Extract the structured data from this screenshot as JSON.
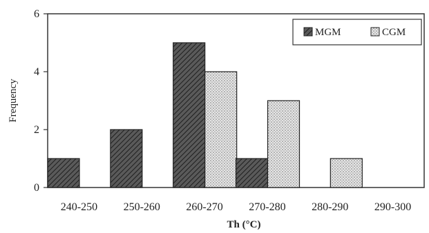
{
  "chart_data": {
    "type": "bar",
    "categories": [
      "240-250",
      "250-260",
      "260-270",
      "270-280",
      "280-290",
      "290-300"
    ],
    "series": [
      {
        "name": "MGM",
        "values": [
          1,
          2,
          5,
          1,
          0,
          0
        ],
        "pattern": "diagonal-hatch",
        "color": "#555555"
      },
      {
        "name": "CGM",
        "values": [
          0,
          0,
          4,
          3,
          1,
          0
        ],
        "pattern": "dots",
        "color": "#bbbbbb"
      }
    ],
    "xlabel": "Th (°C)",
    "ylabel": "Frequency",
    "ylim": [
      0,
      6
    ],
    "yticks": [
      0,
      2,
      4,
      6
    ],
    "legend": {
      "placement": "top-right"
    }
  }
}
